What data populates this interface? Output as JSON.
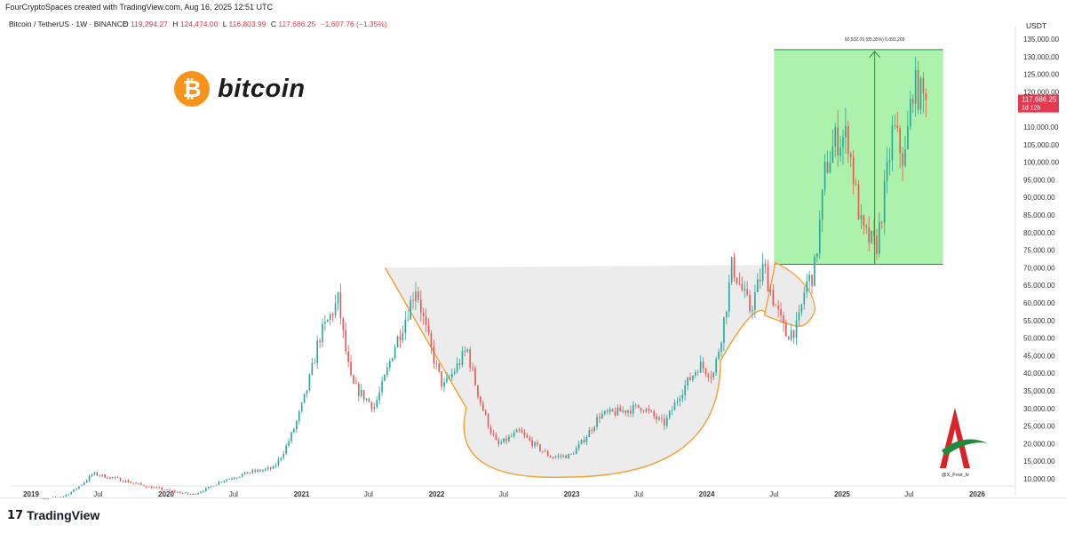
{
  "header": {
    "author_line": "FourCryptoSpaces created with TradingView.com, Aug 16, 2025 12:51 UTC",
    "symbol_line": "Bitcoin / TetherUS · 1W · BINANCE",
    "ohlc": {
      "o_label": "O",
      "o_value": "119,294.27",
      "h_label": "H",
      "h_value": "124,474.00",
      "l_label": "L",
      "l_value": "116,803.99",
      "c_label": "C",
      "c_value": "117,686.25",
      "change": "−1,607.76 (−1.35%)"
    }
  },
  "logo": {
    "icon_glyph": "₿",
    "word": "bitcoin",
    "color": "#f7931a"
  },
  "watermark": {
    "handle": "@X_Four_lv"
  },
  "footer": {
    "brand": "TradingView",
    "brand_glyph": "17"
  },
  "chart_data": {
    "type": "candlestick",
    "currency": "USDT",
    "ylim": [
      10000,
      135000
    ],
    "y_ticks": [
      10000,
      15000,
      20000,
      25000,
      30000,
      35000,
      40000,
      45000,
      50000,
      55000,
      60000,
      65000,
      70000,
      75000,
      80000,
      85000,
      90000,
      95000,
      100000,
      105000,
      110000,
      115000,
      120000,
      125000,
      130000,
      135000
    ],
    "y_tick_labels": [
      "10,000.00",
      "15,000.00",
      "20,000.00",
      "25,000.00",
      "30,000.00",
      "35,000.00",
      "40,000.00",
      "45,000.00",
      "50,000.00",
      "55,000.00",
      "60,000.00",
      "65,000.00",
      "70,000.00",
      "75,000.00",
      "80,000.00",
      "85,000.00",
      "90,000.00",
      "95,000.00",
      "100,000.00",
      "105,000.00",
      "110,000.00",
      "115,000.00",
      "120,000.00",
      "125,000.00",
      "130,000.00",
      "135,000.00"
    ],
    "xlim": [
      "2019-01-01",
      "2026-01-01"
    ],
    "x_ticks": [
      {
        "date": "2019-01-01",
        "label": "2019",
        "bold": true
      },
      {
        "date": "2019-07-01",
        "label": "Jul",
        "bold": false
      },
      {
        "date": "2020-01-01",
        "label": "2020",
        "bold": true
      },
      {
        "date": "2020-07-01",
        "label": "Jul",
        "bold": false
      },
      {
        "date": "2021-01-01",
        "label": "2021",
        "bold": true
      },
      {
        "date": "2021-07-01",
        "label": "Jul",
        "bold": false
      },
      {
        "date": "2022-01-01",
        "label": "2022",
        "bold": true
      },
      {
        "date": "2022-07-01",
        "label": "Jul",
        "bold": false
      },
      {
        "date": "2023-01-01",
        "label": "2023",
        "bold": true
      },
      {
        "date": "2023-07-01",
        "label": "Jul",
        "bold": false
      },
      {
        "date": "2024-01-01",
        "label": "2024",
        "bold": true
      },
      {
        "date": "2024-07-01",
        "label": "Jul",
        "bold": false
      },
      {
        "date": "2025-01-01",
        "label": "2025",
        "bold": true
      },
      {
        "date": "2025-07-01",
        "label": "Jul",
        "bold": false
      },
      {
        "date": "2026-01-01",
        "label": "2026",
        "bold": true
      }
    ],
    "price_path": [
      [
        "2019-01-01",
        3800
      ],
      [
        "2019-04-01",
        5000
      ],
      [
        "2019-06-20",
        11500
      ],
      [
        "2019-09-01",
        9800
      ],
      [
        "2019-12-15",
        7200
      ],
      [
        "2020-03-15",
        5500
      ],
      [
        "2020-06-01",
        9400
      ],
      [
        "2020-08-15",
        11800
      ],
      [
        "2020-10-20",
        13000
      ],
      [
        "2020-12-31",
        29000
      ],
      [
        "2021-02-20",
        50000
      ],
      [
        "2021-04-14",
        61000
      ],
      [
        "2021-05-20",
        37000
      ],
      [
        "2021-07-20",
        30500
      ],
      [
        "2021-09-10",
        47000
      ],
      [
        "2021-11-10",
        65000
      ],
      [
        "2022-01-22",
        36000
      ],
      [
        "2022-03-28",
        47000
      ],
      [
        "2022-06-18",
        19500
      ],
      [
        "2022-08-15",
        23500
      ],
      [
        "2022-11-10",
        16200
      ],
      [
        "2023-01-01",
        16600
      ],
      [
        "2023-03-20",
        28000
      ],
      [
        "2023-07-14",
        30500
      ],
      [
        "2023-09-11",
        25500
      ],
      [
        "2023-10-25",
        34500
      ],
      [
        "2023-12-15",
        42500
      ],
      [
        "2024-01-22",
        39500
      ],
      [
        "2024-03-13",
        71000
      ],
      [
        "2024-05-01",
        58000
      ],
      [
        "2024-06-06",
        70500
      ],
      [
        "2024-08-05",
        51000
      ],
      [
        "2024-09-06",
        53000
      ],
      [
        "2024-09-27",
        65000
      ],
      [
        "2024-10-20",
        68500
      ],
      [
        "2024-11-20",
        98000
      ],
      [
        "2024-12-17",
        106000
      ],
      [
        "2025-01-20",
        107500
      ],
      [
        "2025-02-28",
        80000
      ],
      [
        "2025-04-07",
        76000
      ],
      [
        "2025-05-22",
        110000
      ],
      [
        "2025-06-22",
        100000
      ],
      [
        "2025-07-14",
        122000
      ],
      [
        "2025-08-15",
        117686
      ]
    ],
    "last_price": {
      "value": 117686.25,
      "label": "117,686.25",
      "sublabel": "1d 12h",
      "color": "#e53950"
    },
    "measure_box": {
      "from_date": "2024-07-01",
      "to_date": "2025-10-01",
      "from_price": 71000,
      "to_price": 132000,
      "arrow_date": "2025-03-30",
      "label": "60,932.09 (85.35%) 6,093,209",
      "color": "#90ee90"
    },
    "cup": {
      "rim_left": [
        "2021-08-15",
        70000
      ],
      "rim_right": [
        "2024-06-30",
        71500
      ],
      "bottom": [
        "2022-12-15",
        10500
      ]
    },
    "handle": {
      "left": [
        "2024-06-05",
        56500
      ],
      "top": [
        "2024-07-05",
        71500
      ],
      "right": [
        "2024-10-20",
        58000
      ],
      "bottom": [
        "2024-08-25",
        53500
      ]
    },
    "colors": {
      "up": "#26a69a",
      "down": "#ef5350",
      "curve": "#f0a030"
    }
  }
}
